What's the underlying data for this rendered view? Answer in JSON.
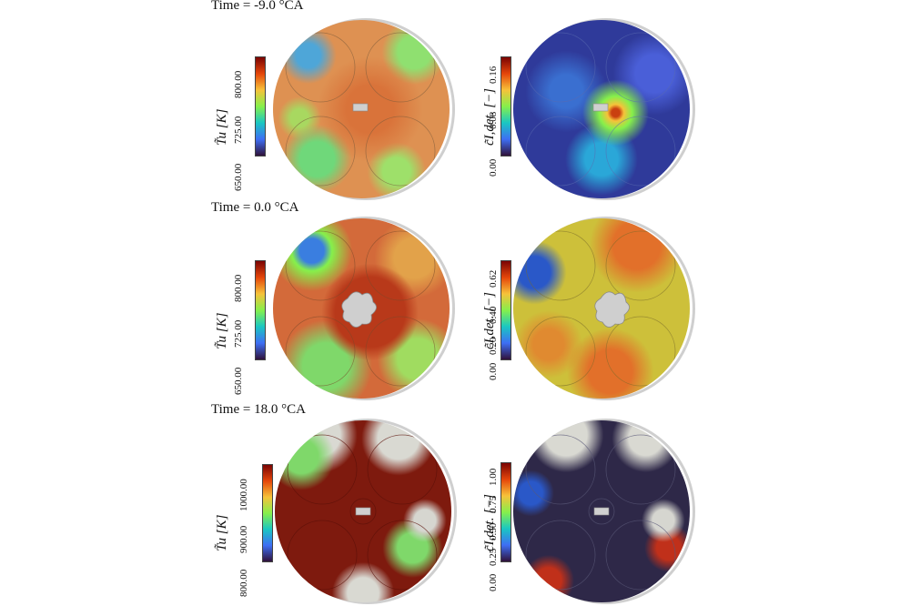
{
  "rows": [
    {
      "time_label": "Time = -9.0 °CA",
      "left": {
        "colorbar_label": "T̃u [K]",
        "ticks": [
          "800.00",
          "725.00",
          "650.00"
        ]
      },
      "right": {
        "colorbar_label": "c̃I,det. [−]",
        "ticks": [
          "0.16",
          "0.08",
          "0.00"
        ]
      }
    },
    {
      "time_label": "Time = 0.0 °CA",
      "left": {
        "colorbar_label": "T̃u [K]",
        "ticks": [
          "800.00",
          "725.00",
          "650.00"
        ]
      },
      "right": {
        "colorbar_label": "c̃I,det. [−]",
        "ticks": [
          "0.62",
          "0.40",
          "0.20",
          "0.00"
        ]
      }
    },
    {
      "time_label": "Time = 18.0 °CA",
      "left": {
        "colorbar_label": "T̃u [K]",
        "ticks": [
          "1000.00",
          "900.00",
          "800.00"
        ]
      },
      "right": {
        "colorbar_label": "c̃I,det. [−]",
        "ticks": [
          "1.00",
          "0.75",
          "0.50",
          "0.25",
          "0.00"
        ]
      }
    }
  ],
  "colors": {
    "colormap_top": "#7a0403",
    "colormap_upper": "#e4460a",
    "colormap_mid_high": "#f6c23a",
    "colormap_mid": "#86f04b",
    "colormap_mid_low": "#1ac7c2",
    "colormap_low": "#3e6ff4",
    "colormap_bottom": "#30123b",
    "spark_plug": "#c8c8c8"
  }
}
